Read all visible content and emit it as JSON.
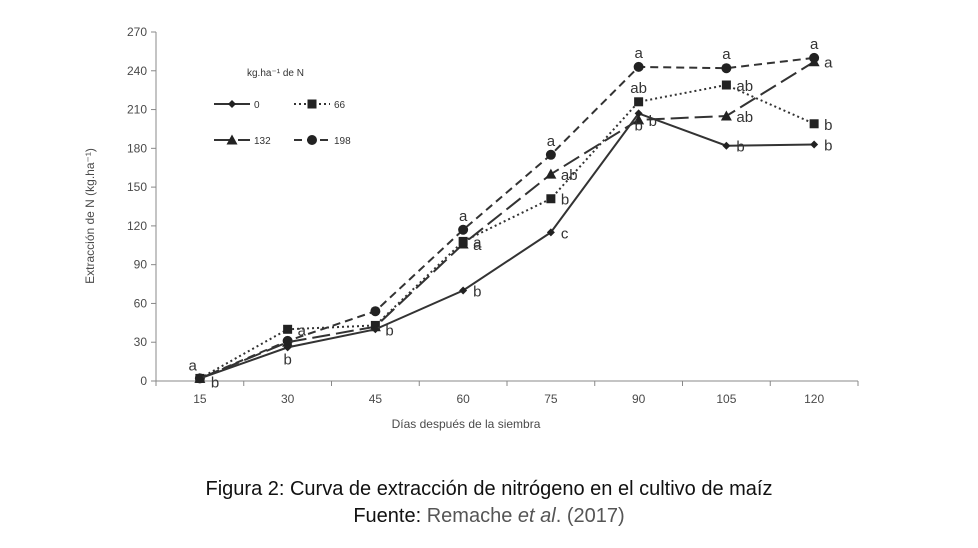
{
  "chart_data": {
    "type": "line",
    "xlabel": "Días después de la siembra",
    "ylabel": "Extracción de N (kg.ha⁻¹)",
    "x": [
      15,
      30,
      45,
      60,
      75,
      90,
      105,
      120
    ],
    "ylim": [
      0,
      270
    ],
    "yticks": [
      0,
      30,
      60,
      90,
      120,
      150,
      180,
      210,
      240,
      270
    ],
    "grid": false,
    "legend_title": "kg.ha⁻¹ de N",
    "legend_position": "top-left",
    "series": [
      {
        "name": "0",
        "marker": "diamond",
        "style": "solid",
        "values": [
          2,
          26,
          40,
          70,
          115,
          207,
          182,
          183
        ],
        "letters": [
          "a",
          "b",
          "b",
          "b",
          "c",
          "b",
          "b",
          "b"
        ]
      },
      {
        "name": "66",
        "marker": "square",
        "style": "dotted",
        "values": [
          2,
          40,
          43,
          108,
          141,
          216,
          229,
          199
        ],
        "letters": [
          "b",
          "a",
          "",
          "a",
          "b",
          "ab",
          "ab",
          "b"
        ]
      },
      {
        "name": "132",
        "marker": "triangle",
        "style": "longdash",
        "values": [
          2,
          30,
          42,
          106,
          160,
          202,
          205,
          247
        ],
        "letters": [
          "",
          "",
          "",
          "a",
          "ab",
          "b",
          "ab",
          "a"
        ]
      },
      {
        "name": "198",
        "marker": "circle",
        "style": "dash",
        "values": [
          2,
          31,
          54,
          117,
          175,
          243,
          242,
          250
        ],
        "letters": [
          "",
          "",
          "",
          "a",
          "a",
          "a",
          "a",
          "a"
        ]
      }
    ]
  },
  "caption": {
    "line1": "Figura 2: Curva de extracción de nitrógeno en el cultivo de maíz",
    "source_label": "Fuente:",
    "source_author": "Remache",
    "source_etal": "et al",
    "source_year": ". (2017)"
  }
}
